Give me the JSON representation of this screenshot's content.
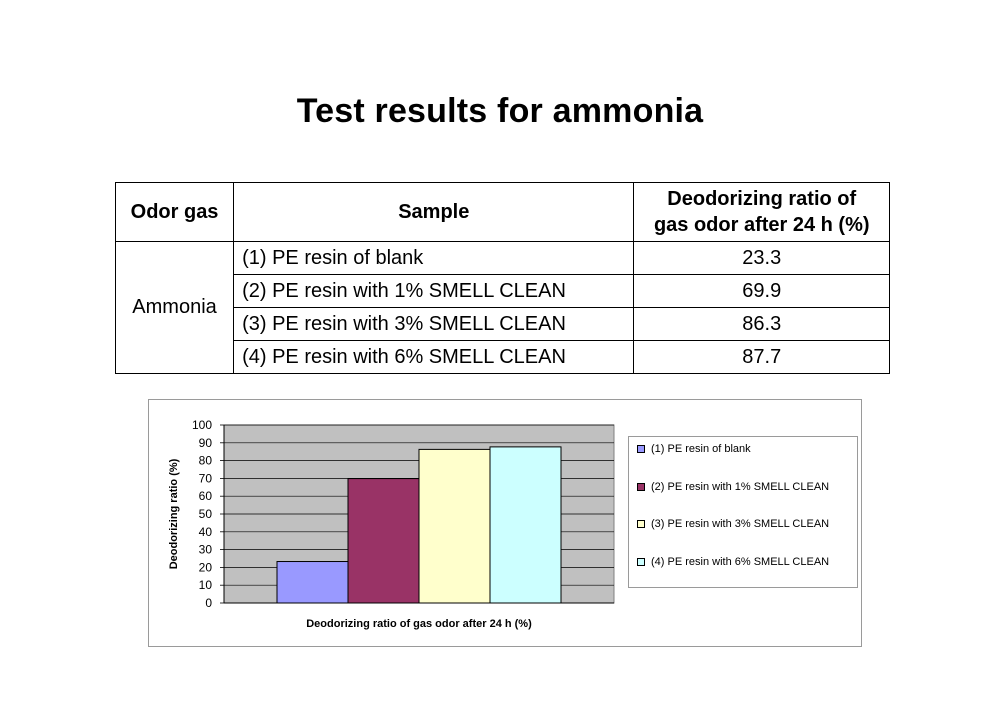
{
  "title": "Test results for ammonia",
  "table": {
    "headers": {
      "odor_gas": "Odor gas",
      "sample": "Sample",
      "ratio_line1": "Deodorizing ratio of",
      "ratio_line2": "gas odor after 24 h (%)"
    },
    "gas": "Ammonia",
    "rows": [
      {
        "sample": "(1) PE resin of blank",
        "value": "23.3"
      },
      {
        "sample": "(2) PE resin with 1% SMELL CLEAN",
        "value": "69.9"
      },
      {
        "sample": "(3) PE resin with 3% SMELL CLEAN",
        "value": "86.3"
      },
      {
        "sample": "(4) PE resin with 6% SMELL CLEAN",
        "value": "87.7"
      }
    ]
  },
  "chart_data": {
    "type": "bar",
    "title": "",
    "xlabel": "Deodorizing ratio of gas odor after 24 h (%)",
    "ylabel": "Deodorizing ratio (%)",
    "ylim": [
      0,
      100
    ],
    "yticks": [
      0,
      10,
      20,
      30,
      40,
      50,
      60,
      70,
      80,
      90,
      100
    ],
    "grid": true,
    "legend": "right",
    "plot_background": "#c0c0c0",
    "series": [
      {
        "name": "(1) PE resin of blank",
        "values": [
          23.3
        ],
        "color": "#9999ff"
      },
      {
        "name": "(2) PE resin with 1% SMELL CLEAN",
        "values": [
          69.9
        ],
        "color": "#993366"
      },
      {
        "name": "(3) PE resin with 3% SMELL CLEAN",
        "values": [
          86.3
        ],
        "color": "#ffffcc"
      },
      {
        "name": "(4) PE resin with 6% SMELL CLEAN",
        "values": [
          87.7
        ],
        "color": "#ccffff"
      }
    ]
  }
}
